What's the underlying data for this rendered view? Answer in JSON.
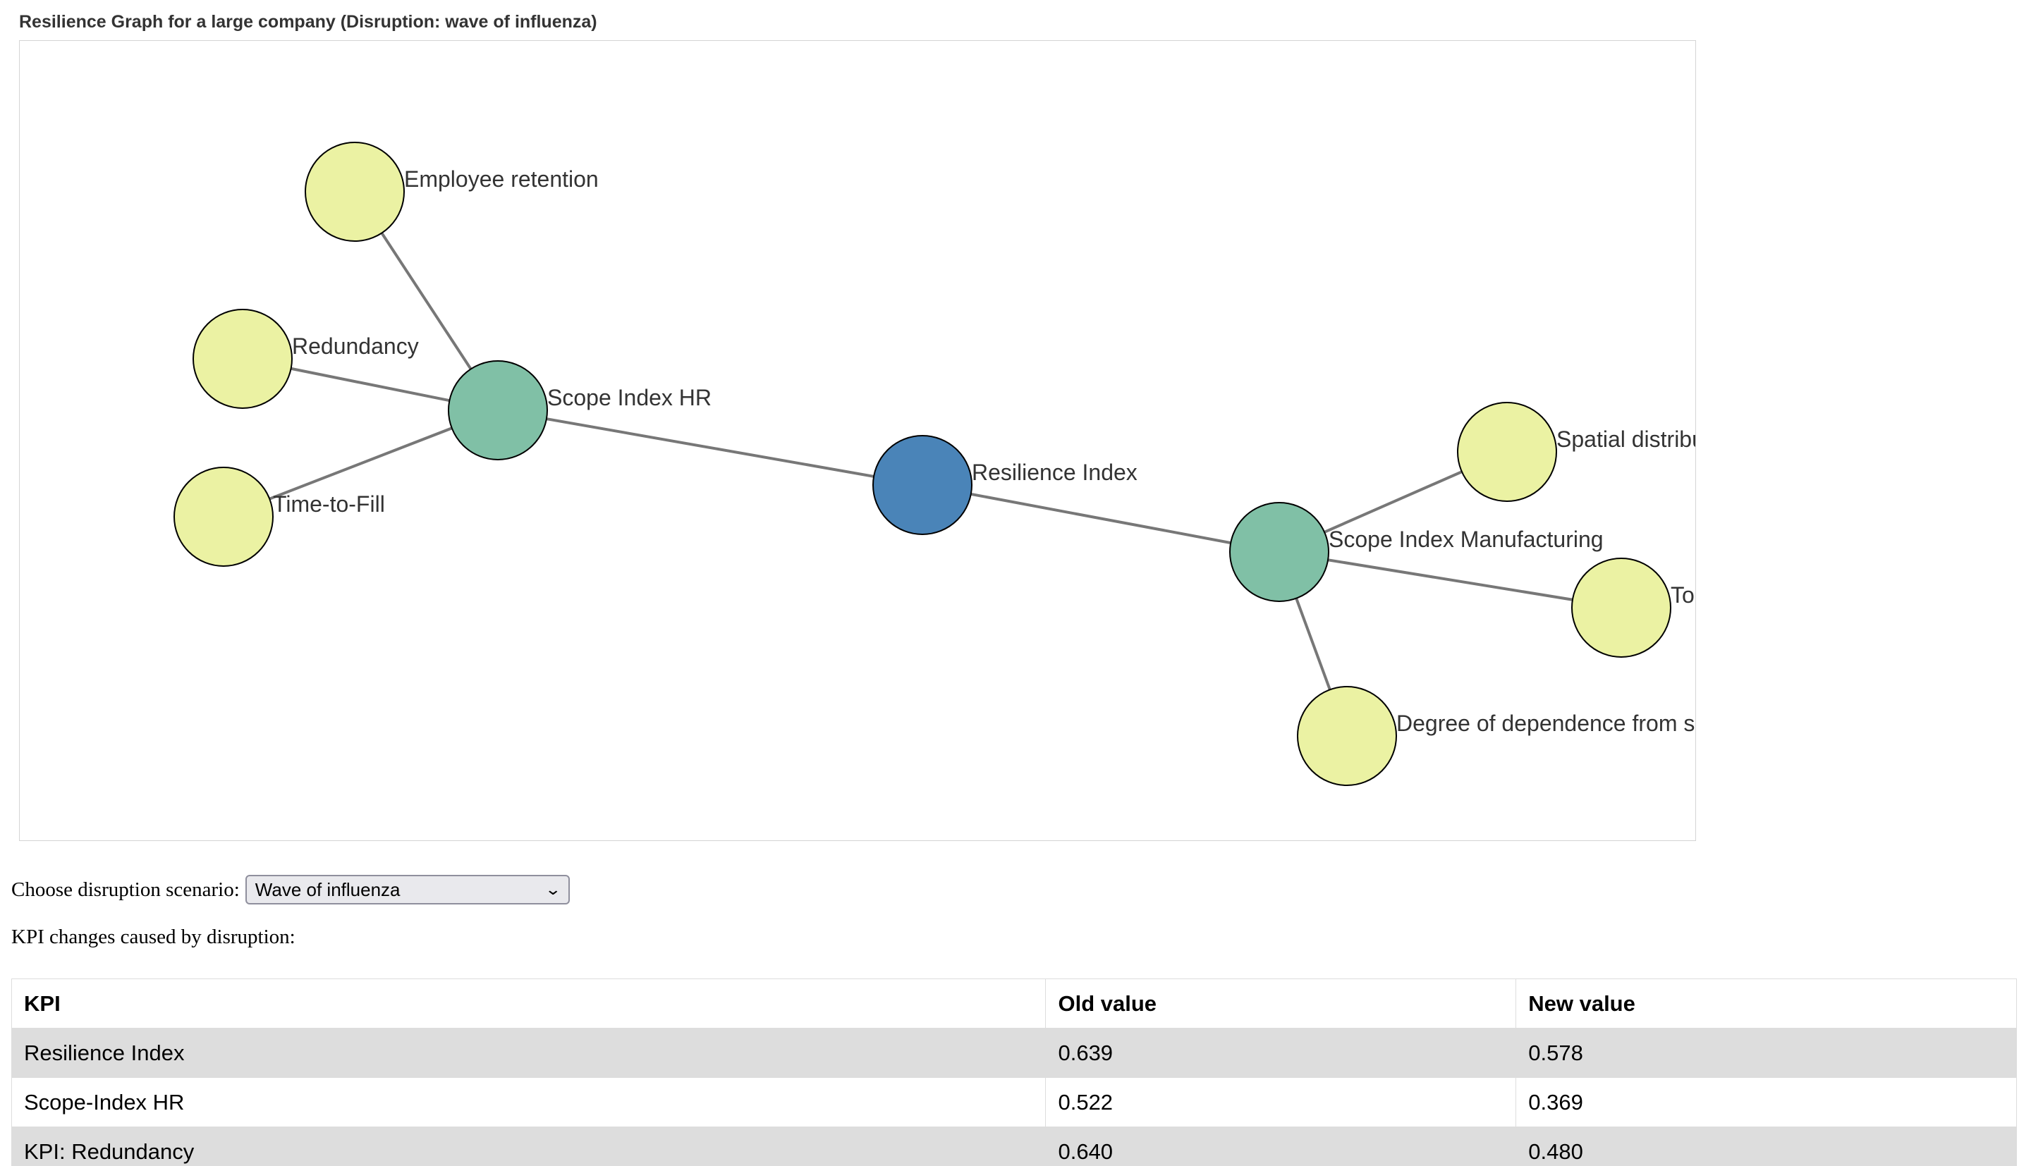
{
  "graph": {
    "title": "Resilience Graph for a large company (Disruption: wave of influenza)",
    "colors": {
      "root": "#4a84b8",
      "scope": "#80c0a6",
      "kpi": "#ebf2a3",
      "edge": "#777777"
    },
    "nodes": [
      {
        "id": "resilience",
        "label": "Resilience Index",
        "kind": "root"
      },
      {
        "id": "scope_hr",
        "label": "Scope Index HR",
        "kind": "scope"
      },
      {
        "id": "scope_mfg",
        "label": "Scope Index Manufacturing",
        "kind": "scope"
      },
      {
        "id": "retention",
        "label": "Employee retention",
        "kind": "kpi"
      },
      {
        "id": "redundancy",
        "label": "Redundancy",
        "kind": "kpi"
      },
      {
        "id": "ttf",
        "label": "Time-to-Fill",
        "kind": "kpi"
      },
      {
        "id": "spatial",
        "label": "Spatial distribution",
        "kind": "kpi"
      },
      {
        "id": "tolerance",
        "label": "Toleranc",
        "kind": "kpi"
      },
      {
        "id": "dependence",
        "label": "Degree of dependence from supplie",
        "kind": "kpi"
      }
    ],
    "edges": [
      [
        "resilience",
        "scope_hr"
      ],
      [
        "resilience",
        "scope_mfg"
      ],
      [
        "scope_hr",
        "retention"
      ],
      [
        "scope_hr",
        "redundancy"
      ],
      [
        "scope_hr",
        "ttf"
      ],
      [
        "scope_mfg",
        "spatial"
      ],
      [
        "scope_mfg",
        "tolerance"
      ],
      [
        "scope_mfg",
        "dependence"
      ]
    ]
  },
  "scenario": {
    "label": "Choose disruption scenario:",
    "selected": "Wave of influenza"
  },
  "kpi": {
    "caption": "KPI changes caused by disruption:",
    "headers": [
      "KPI",
      "Old value",
      "New value"
    ],
    "rows": [
      [
        "Resilience Index",
        "0.639",
        "0.578"
      ],
      [
        "Scope-Index HR",
        "0.522",
        "0.369"
      ],
      [
        "KPI: Redundancy",
        "0.640",
        "0.480"
      ]
    ]
  }
}
